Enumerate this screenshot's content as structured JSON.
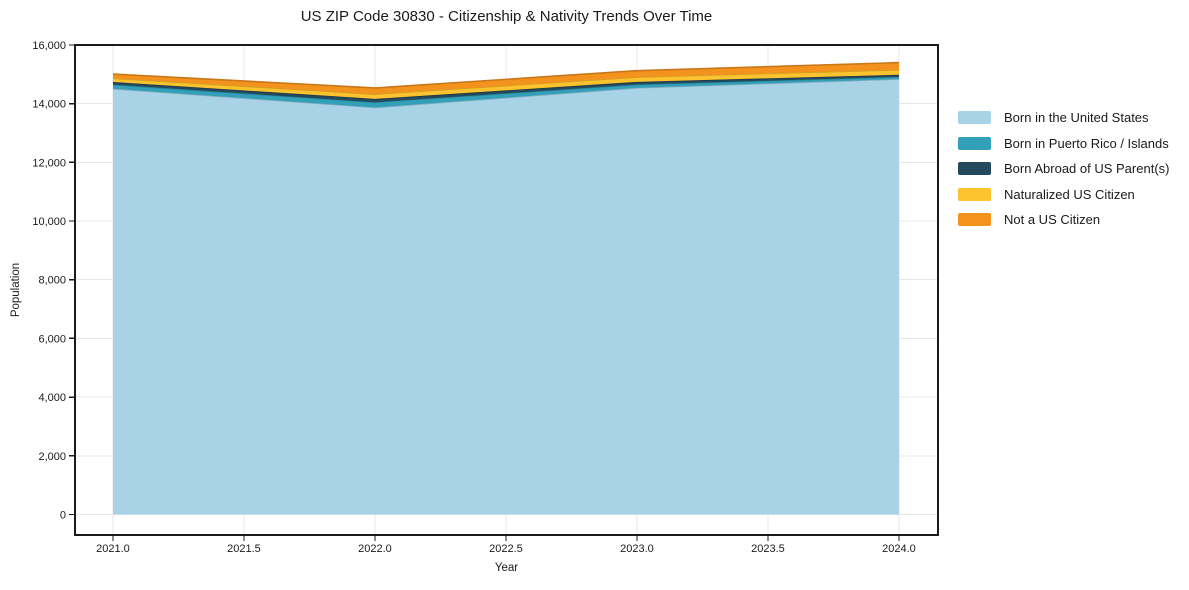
{
  "chart_data": {
    "type": "area",
    "stacked": true,
    "title": "US ZIP Code 30830 - Citizenship & Nativity Trends Over Time",
    "xlabel": "Year",
    "ylabel": "Population",
    "x": [
      2021,
      2022,
      2023,
      2024
    ],
    "series": [
      {
        "name": "Born in the United States",
        "color": "#a8d3e6",
        "values": [
          14510,
          13870,
          14540,
          14840
        ]
      },
      {
        "name": "Born in Puerto Rico / Islands",
        "color": "#31a0b8",
        "values": [
          140,
          180,
          115,
          75
        ]
      },
      {
        "name": "Born Abroad of US Parent(s)",
        "color": "#24485c",
        "values": [
          90,
          115,
          90,
          70
        ]
      },
      {
        "name": "Naturalized US Citizen",
        "color": "#fcc32e",
        "values": [
          125,
          160,
          160,
          170
        ]
      },
      {
        "name": "Not a US Citizen",
        "color": "#f4921e",
        "values": [
          145,
          210,
          220,
          245
        ]
      }
    ],
    "totals": [
      15010,
      14535,
      15125,
      15400
    ],
    "xlim": [
      2020.855,
      2024.149
    ],
    "ylim": [
      -700,
      16000
    ],
    "x_ticks": [
      {
        "value": 2021.0,
        "label": "2021.0"
      },
      {
        "value": 2021.5,
        "label": "2021.5"
      },
      {
        "value": 2022.0,
        "label": "2022.0"
      },
      {
        "value": 2022.5,
        "label": "2022.5"
      },
      {
        "value": 2023.0,
        "label": "2023.0"
      },
      {
        "value": 2023.5,
        "label": "2023.5"
      },
      {
        "value": 2024.0,
        "label": "2024.0"
      }
    ],
    "y_ticks": [
      {
        "value": 0,
        "label": "0"
      },
      {
        "value": 2000,
        "label": "2,000"
      },
      {
        "value": 4000,
        "label": "4,000"
      },
      {
        "value": 6000,
        "label": "6,000"
      },
      {
        "value": 8000,
        "label": "8,000"
      },
      {
        "value": 10000,
        "label": "10,000"
      },
      {
        "value": 12000,
        "label": "12,000"
      },
      {
        "value": 14000,
        "label": "14,000"
      },
      {
        "value": 16000,
        "label": "16,000"
      }
    ],
    "grid": true,
    "legend_position": "right-outside",
    "colors": {
      "background": "#ffffff",
      "gridline": "#e7e7e7",
      "spine": "#1a1a1a",
      "text": "#1a1a1a"
    }
  }
}
